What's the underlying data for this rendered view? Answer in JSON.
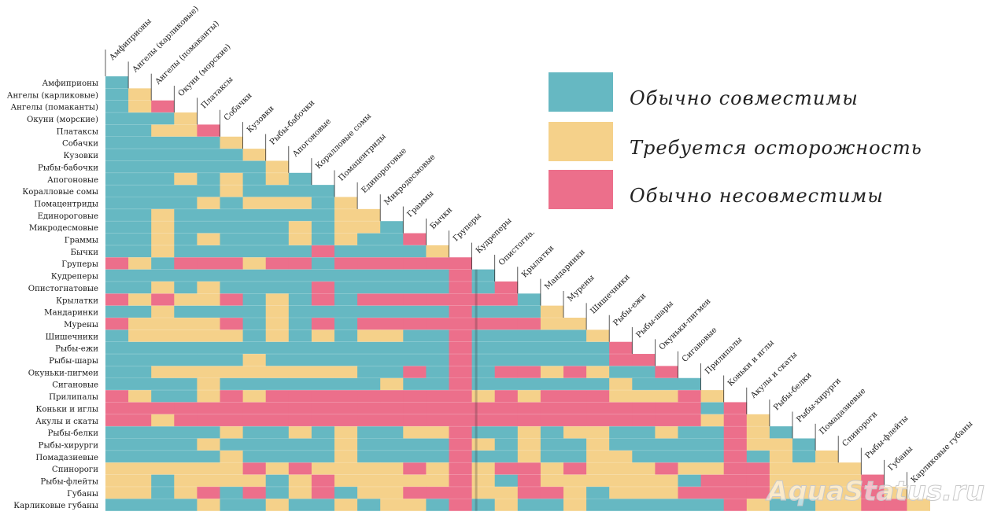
{
  "chart_data": {
    "type": "heatmap",
    "species": [
      "Амфиприоны",
      "Ангелы (карликовые)",
      "Ангелы (помаканты)",
      "Окуни (морские)",
      "Платаксы",
      "Собачки",
      "Кузовки",
      "Рыбы-бабочки",
      "Апогоновые",
      "Коралловые сомы",
      "Помацентриды",
      "Единороговые",
      "Микродесмовые",
      "Граммы",
      "Бычки",
      "Груперы",
      "Кудреперы",
      "Опистогнатовые",
      "Крылатки",
      "Мандаринки",
      "Мурены",
      "Шишечники",
      "Рыбы-ежи",
      "Рыбы-шары",
      "Окуньки-пигмеи",
      "Сигановые",
      "Прилипалы",
      "Коньки и иглы",
      "Акулы и скаты",
      "Рыбы-белки",
      "Рыбы-хирурги",
      "Помадазиевые",
      "Спинороги",
      "Рыбы-флейты",
      "Губаны",
      "Карликовые губаны"
    ],
    "column_labels": [
      "Амфиприоны",
      "Ангелы (карликовые)",
      "Ангелы (помаканты)",
      "Окуни (морские)",
      "Платаксы",
      "Собачки",
      "Кузовки",
      "Рыбы-бабочки",
      "Апогоновые",
      "Коралловые сомы",
      "Помацентриды",
      "Единороговые",
      "Микродесмовые",
      "Граммы",
      "Бычки",
      "Груперы",
      "Кудреперы",
      "Опистогна.",
      "Крылатки",
      "Мандаринки",
      "Мурены",
      "Шишечники",
      "Рыбы-ежи",
      "Рыбы-шары",
      "Окуньки-пигмеи",
      "Сигановые",
      "Прилипалы",
      "Коньки и иглы",
      "Акулы и скаты",
      "Рыбы-белки",
      "Рыбы-хирурги",
      "Помадазиевые",
      "Спинороги",
      "Рыбы-флейты",
      "Губаны",
      "Карликовые губаны"
    ],
    "category_codes": {
      "G": "compatible",
      "Y": "caution",
      "R": "incompatible"
    },
    "colors": {
      "G": "#66b8c2",
      "Y": "#f5d18a",
      "R": "#ec6f8b"
    },
    "matrix": [
      "G",
      "GY",
      "GYR",
      "GGGY",
      "GGYYR",
      "GGGGGY",
      "GGGGGGY",
      "GGGGGGGY",
      "GGGYGYGYG",
      "GGGGGYGGGG",
      "GGGGYGYYYGY",
      "GGYGGGGGGGYY",
      "GGYGGGGGYGYYG",
      "GGYGYGGGYGYGGR",
      "GGYGGGGGGRGGGGY",
      "RYGRRRYRRGRRRRRR",
      "GGGGGGGGGGGGGGGRG",
      "GGYGYGGGGRGGGGGRGR",
      "RYRYYRGYGRGRRRRRRRG",
      "GGYGGGGYGGGGGGGRGGGY",
      "RYYYYRGYGRGRRRRRRRRYY",
      "GYYYYYGYGYGYYGGRGGGGGY",
      "GGGGGGGGGGGGGGGRGGGGGGR",
      "GGGGGGYGGGGGGGGRGGGGGGRR",
      "GGYYYYYYYYYGGRGRGRRYRYGGR",
      "GGGGYGGGGGGGYGGRGGGGGGYGGG",
      "RYGGYRYRRRRRRRRRYRYRRRYYYRY",
      "RRRRRRRRRRRRRRRRRRRRRRRRRRGR",
      "RRYRRRRRRRRRRRRRRRRRRRRRRRYRY",
      "GGGGGYGGYGYGGYYRGGYGYYGGYGGRYG",
      "GGGGYGGGGGYGGGGRYGYGGYGGGGGRYYG",
      "GGGGGYGGGGYGGGGRGGYGGYYGGGGRGYGY",
      "YYYYYYRYRYYYYRYRYRRYRYYYRYYRRYYYY",
      "YYGYYYYGYRYYYYYRYGRYYYYYYGRRRYYYYR",
      "YYGYRGRGYRGYYRRRYYRRYGYYYRRRRYYYYRY",
      "GGGGYGGYGGYGYYGRGYGGYGGGGGGRYGGYYRRY"
    ]
  },
  "legend": [
    {
      "key": "G",
      "label": "Обычно совместимы"
    },
    {
      "key": "Y",
      "label": "Требуется осторожность"
    },
    {
      "key": "R",
      "label": "Обычно несовместимы"
    }
  ],
  "watermark": "AquaStatus.ru"
}
